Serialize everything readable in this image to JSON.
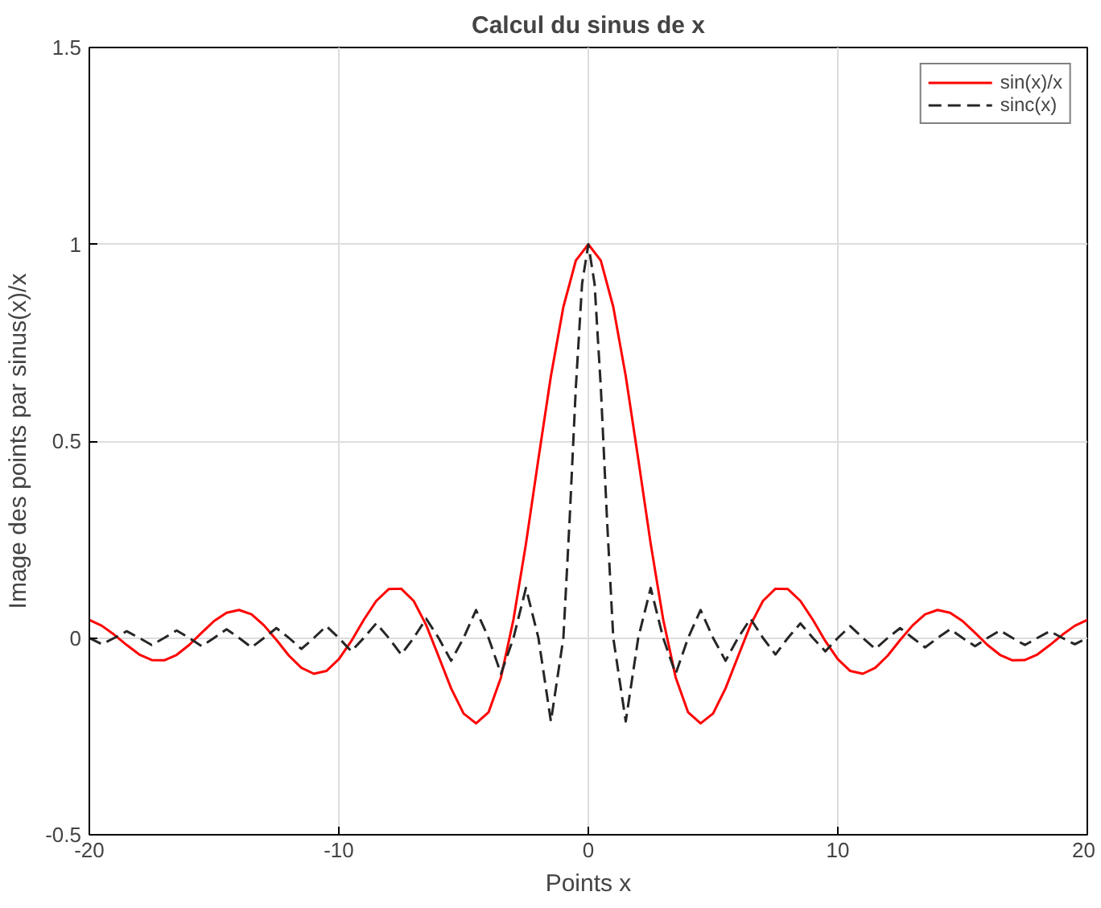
{
  "chart_data": {
    "type": "line",
    "title": "Calcul du sinus de x",
    "xlabel": "Points x",
    "ylabel": "Image des points par sinus(x)/x",
    "xlim": [
      -20,
      20
    ],
    "ylim": [
      -0.5,
      1.5
    ],
    "xticks": [
      -20,
      -10,
      0,
      10,
      20
    ],
    "yticks": [
      -0.5,
      0,
      0.5,
      1,
      1.5
    ],
    "grid": true,
    "legend": "top right",
    "series": [
      {
        "name": "sin(x)/x",
        "color": "#ff0000",
        "line_style": "solid",
        "x": [
          -20,
          -19.5,
          -19,
          -18.5,
          -18,
          -17.5,
          -17,
          -16.5,
          -16,
          -15.5,
          -15,
          -14.5,
          -14,
          -13.5,
          -13,
          -12.5,
          -12,
          -11.5,
          -11,
          -10.5,
          -10,
          -9.5,
          -9,
          -8.5,
          -8,
          -7.5,
          -7,
          -6.5,
          -6,
          -5.5,
          -5,
          -4.5,
          -4,
          -3.5,
          -3,
          -2.5,
          -2,
          -1.5,
          -1,
          -0.5,
          0,
          0.5,
          1,
          1.5,
          2,
          2.5,
          3,
          3.5,
          4,
          4.5,
          5,
          5.5,
          6,
          6.5,
          7,
          7.5,
          8,
          8.5,
          9,
          9.5,
          10,
          10.5,
          11,
          11.5,
          12,
          12.5,
          13,
          13.5,
          14,
          14.5,
          15,
          15.5,
          16,
          16.5,
          17,
          17.5,
          18,
          18.5,
          19,
          19.5,
          20
        ],
        "values": [
          0.046,
          0.031,
          0.008,
          -0.018,
          -0.042,
          -0.056,
          -0.057,
          -0.043,
          -0.018,
          0.013,
          0.043,
          0.064,
          0.071,
          0.06,
          0.032,
          -0.005,
          -0.045,
          -0.076,
          -0.091,
          -0.084,
          -0.054,
          -0.008,
          0.046,
          0.094,
          0.124,
          0.125,
          0.094,
          0.033,
          -0.047,
          -0.128,
          -0.192,
          -0.217,
          -0.189,
          -0.1,
          0.047,
          0.239,
          0.455,
          0.665,
          0.841,
          0.959,
          1,
          0.959,
          0.841,
          0.665,
          0.455,
          0.239,
          0.047,
          -0.1,
          -0.189,
          -0.217,
          -0.192,
          -0.128,
          -0.047,
          0.033,
          0.094,
          0.125,
          0.124,
          0.094,
          0.046,
          -0.008,
          -0.054,
          -0.084,
          -0.091,
          -0.076,
          -0.045,
          -0.005,
          0.032,
          0.06,
          0.071,
          0.064,
          0.043,
          0.013,
          -0.018,
          -0.043,
          -0.057,
          -0.056,
          -0.042,
          -0.018,
          0.008,
          0.031,
          0.046
        ]
      },
      {
        "name": "sinc(x)",
        "color": "#262626",
        "line_style": "dashed",
        "x": [
          -20,
          -19.5,
          -19,
          -18.5,
          -18,
          -17.5,
          -17,
          -16.5,
          -16,
          -15.5,
          -15,
          -14.5,
          -14,
          -13.5,
          -13,
          -12.5,
          -12,
          -11.5,
          -11,
          -10.5,
          -10,
          -9.5,
          -9,
          -8.5,
          -8,
          -7.5,
          -7,
          -6.5,
          -6,
          -5.5,
          -5,
          -4.5,
          -4,
          -3.5,
          -3,
          -2.5,
          -2,
          -1.5,
          -1,
          -0.75,
          -0.5,
          -0.25,
          0,
          0.25,
          0.5,
          0.75,
          1,
          1.5,
          2,
          2.5,
          3,
          3.5,
          4,
          4.5,
          5,
          5.5,
          6,
          6.5,
          7,
          7.5,
          8,
          8.5,
          9,
          9.5,
          10,
          10.5,
          11,
          11.5,
          12,
          12.5,
          13,
          13.5,
          14,
          14.5,
          15,
          15.5,
          16,
          16.5,
          17,
          17.5,
          18,
          18.5,
          19,
          19.5,
          20
        ],
        "values": [
          0,
          -0.016,
          0,
          0.017,
          0,
          -0.018,
          0,
          0.019,
          0,
          -0.021,
          0,
          0.022,
          0,
          -0.024,
          0,
          0.025,
          0,
          -0.028,
          0,
          0.03,
          0,
          -0.034,
          0,
          0.037,
          0,
          -0.042,
          0,
          0.049,
          0,
          -0.058,
          0,
          0.071,
          0,
          -0.091,
          0,
          0.127,
          0,
          -0.212,
          0,
          0.3,
          0.637,
          0.9,
          1,
          0.9,
          0.637,
          0.3,
          0,
          -0.212,
          0,
          0.127,
          0,
          -0.091,
          0,
          0.071,
          0,
          -0.058,
          0,
          0.049,
          0,
          -0.042,
          0,
          0.037,
          0,
          -0.034,
          0,
          0.03,
          0,
          -0.028,
          0,
          0.025,
          0,
          -0.024,
          0,
          0.022,
          0,
          -0.021,
          0,
          0.019,
          0,
          -0.018,
          0,
          0.017,
          0,
          -0.016,
          0
        ]
      }
    ]
  }
}
